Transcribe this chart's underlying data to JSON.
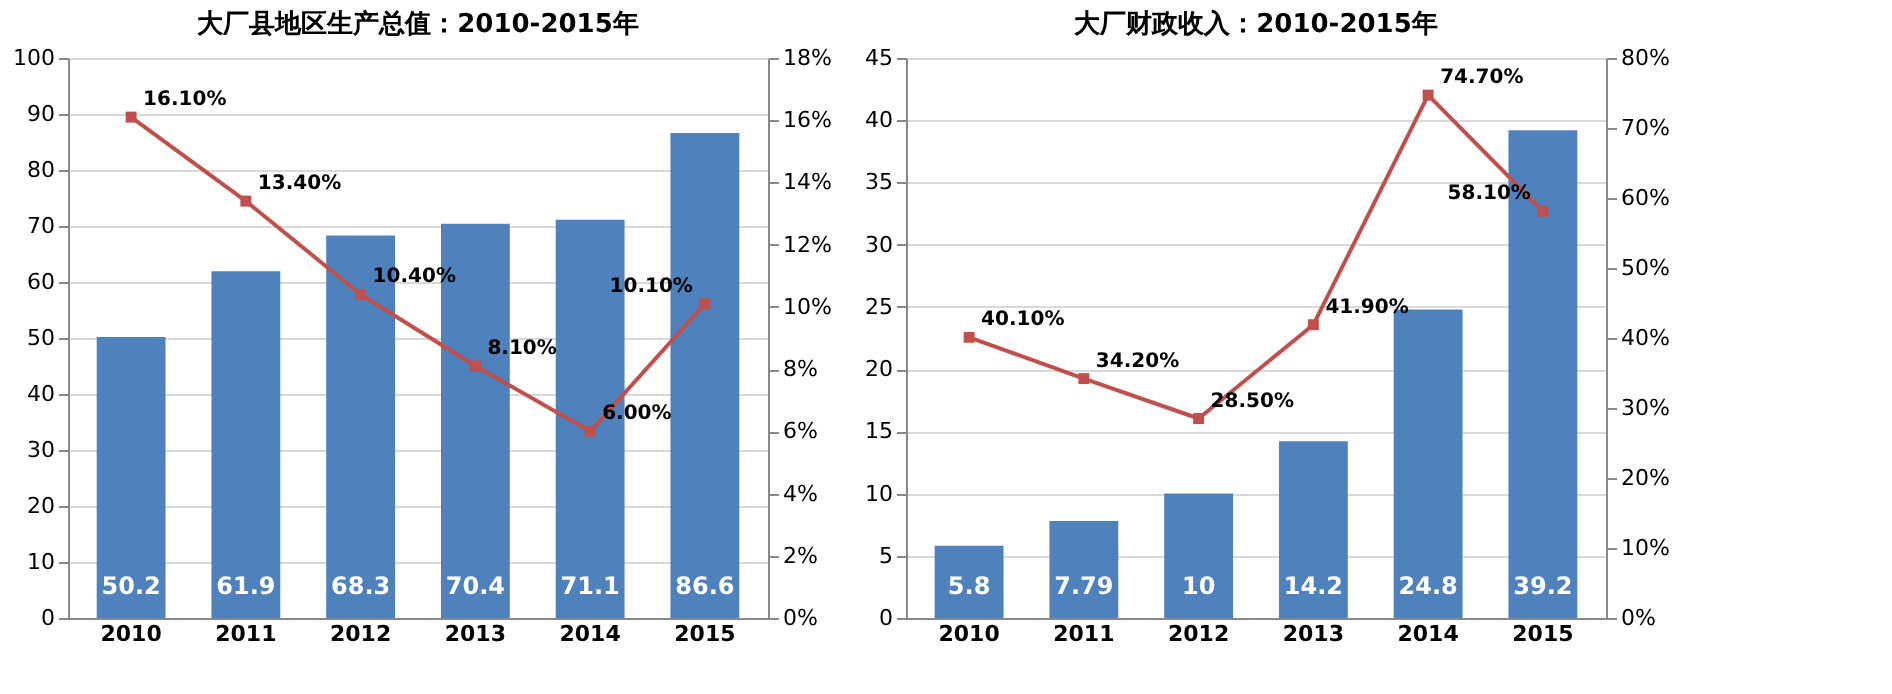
{
  "chart_data": [
    {
      "type": "bar",
      "title": "大厂县地区生产总值：2010-2015年",
      "categories": [
        "2010",
        "2011",
        "2012",
        "2013",
        "2014",
        "2015"
      ],
      "ylim": [
        0,
        100
      ],
      "yticks": [
        0,
        10,
        20,
        30,
        40,
        50,
        60,
        70,
        80,
        90,
        100
      ],
      "y2lim": [
        0,
        18
      ],
      "y2ticks": [
        {
          "value": 0,
          "label": "0%"
        },
        {
          "value": 2,
          "label": "2%"
        },
        {
          "value": 4,
          "label": "4%"
        },
        {
          "value": 6,
          "label": "6%"
        },
        {
          "value": 8,
          "label": "8%"
        },
        {
          "value": 10,
          "label": "10%"
        },
        {
          "value": 12,
          "label": "12%"
        },
        {
          "value": 14,
          "label": "14%"
        },
        {
          "value": 16,
          "label": "16%"
        },
        {
          "value": 18,
          "label": "18%"
        }
      ],
      "grid": "y",
      "marker": "square",
      "series": [
        {
          "color": "#4f81bd",
          "values": [
            50.2,
            61.9,
            68.3,
            70.4,
            71.1,
            86.6
          ],
          "value_labels": [
            "50.2",
            "61.9",
            "68.3",
            "70.4",
            "71.1",
            "86.6"
          ]
        },
        {
          "type": "line",
          "axis": "y2",
          "color": "#c0504d",
          "values": [
            16.1,
            13.4,
            10.4,
            8.1,
            6.0,
            10.1
          ],
          "value_labels": [
            "16.10%",
            "13.40%",
            "10.40%",
            "8.10%",
            "6.00%",
            "10.10%"
          ]
        }
      ]
    },
    {
      "type": "bar",
      "title": "大厂财政收入：2010-2015年",
      "categories": [
        "2010",
        "2011",
        "2012",
        "2013",
        "2014",
        "2015"
      ],
      "ylim": [
        0,
        45
      ],
      "yticks": [
        0,
        5,
        10,
        15,
        20,
        25,
        30,
        35,
        40,
        45
      ],
      "y2lim": [
        0,
        80
      ],
      "y2ticks": [
        {
          "value": 0,
          "label": "0%"
        },
        {
          "value": 10,
          "label": "10%"
        },
        {
          "value": 20,
          "label": "20%"
        },
        {
          "value": 30,
          "label": "30%"
        },
        {
          "value": 40,
          "label": "40%"
        },
        {
          "value": 50,
          "label": "50%"
        },
        {
          "value": 60,
          "label": "60%"
        },
        {
          "value": 70,
          "label": "70%"
        },
        {
          "value": 80,
          "label": "80%"
        }
      ],
      "grid": "y",
      "marker": "square",
      "series": [
        {
          "color": "#4f81bd",
          "values": [
            5.8,
            7.79,
            10,
            14.2,
            24.8,
            39.2
          ],
          "value_labels": [
            "5.8",
            "7.79",
            "10",
            "14.2",
            "24.8",
            "39.2"
          ]
        },
        {
          "type": "line",
          "axis": "y2",
          "color": "#c0504d",
          "values": [
            40.1,
            34.2,
            28.5,
            41.9,
            74.7,
            58.1
          ],
          "value_labels": [
            "40.10%",
            "34.20%",
            "28.50%",
            "41.90%",
            "74.70%",
            "58.10%"
          ]
        }
      ]
    }
  ]
}
